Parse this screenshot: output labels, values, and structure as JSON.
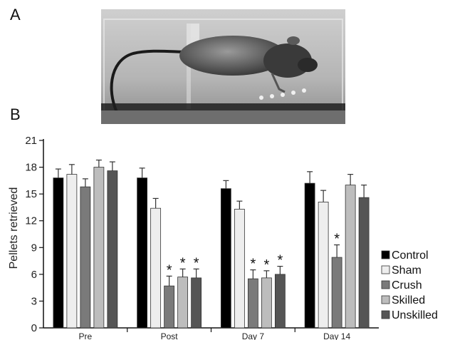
{
  "panels": {
    "a": "A",
    "b": "B"
  },
  "photo": {
    "description_icon": "rat-in-reaching-box-photo"
  },
  "chart_data": {
    "type": "bar",
    "ylabel": "Pellets retrieved",
    "xlabel": "",
    "ylim": [
      0,
      21
    ],
    "yticks": [
      0,
      3,
      6,
      9,
      12,
      15,
      18,
      21
    ],
    "categories": [
      "Pre",
      "Post",
      "Day 7",
      "Day 14"
    ],
    "legend_position": "right",
    "significance_marker": "*",
    "series": [
      {
        "name": "Control",
        "color": "#000000",
        "values": [
          16.8,
          16.8,
          15.6,
          16.2
        ],
        "errors": [
          1.0,
          1.1,
          0.9,
          1.3
        ],
        "significant": [
          false,
          false,
          false,
          false
        ]
      },
      {
        "name": "Sham",
        "color": "#eeeeee",
        "values": [
          17.2,
          13.4,
          13.3,
          14.1
        ],
        "errors": [
          1.1,
          1.1,
          0.9,
          1.3
        ],
        "significant": [
          false,
          false,
          false,
          false
        ]
      },
      {
        "name": "Crush",
        "color": "#7a7a7a",
        "values": [
          15.8,
          4.7,
          5.5,
          7.9
        ],
        "errors": [
          0.9,
          1.1,
          1.0,
          1.4
        ],
        "significant": [
          false,
          true,
          true,
          true
        ]
      },
      {
        "name": "Skilled",
        "color": "#bdbdbd",
        "values": [
          18.0,
          5.7,
          5.6,
          16.0
        ],
        "errors": [
          0.8,
          0.9,
          0.8,
          1.2
        ],
        "significant": [
          false,
          true,
          true,
          false
        ]
      },
      {
        "name": "Unskilled",
        "color": "#555555",
        "values": [
          17.6,
          5.6,
          6.0,
          14.6
        ],
        "errors": [
          1.0,
          1.0,
          0.9,
          1.4
        ],
        "significant": [
          false,
          true,
          true,
          false
        ]
      }
    ]
  }
}
